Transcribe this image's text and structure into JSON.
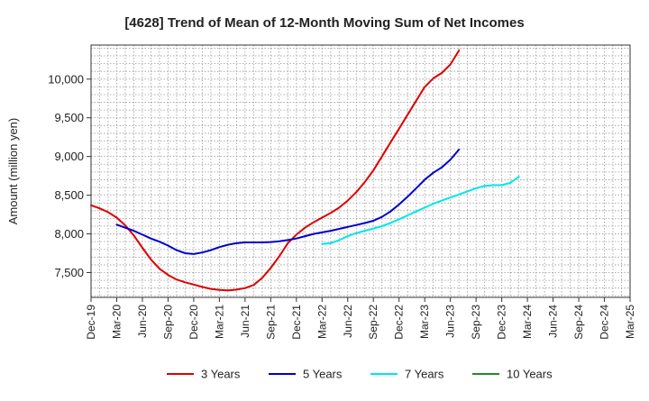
{
  "chart_data": {
    "type": "line",
    "title": "[4628]  Trend of Mean of 12-Month Moving Sum of Net Incomes",
    "xlabel": "",
    "ylabel": "Amount (million yen)",
    "x_tick_labels": [
      "Dec-19",
      "Mar-20",
      "Jun-20",
      "Sep-20",
      "Dec-20",
      "Mar-21",
      "Jun-21",
      "Sep-21",
      "Dec-21",
      "Mar-22",
      "Jun-22",
      "Sep-22",
      "Dec-22",
      "Mar-23",
      "Jun-23",
      "Sep-23",
      "Dec-23",
      "Mar-24",
      "Jun-24",
      "Sep-24",
      "Dec-24",
      "Mar-25"
    ],
    "y_ticks": [
      7500,
      8000,
      8500,
      9000,
      9500,
      10000
    ],
    "y_tick_labels": [
      "7,500",
      "8,000",
      "8,500",
      "9,000",
      "9,500",
      "10,000"
    ],
    "ylim": [
      7180,
      10440
    ],
    "grid": true,
    "legend_position": "bottom",
    "series": [
      {
        "name": "3 Years",
        "color": "#dd0000",
        "start_label": "Dec-19",
        "values": [
          8370,
          8330,
          8280,
          8210,
          8110,
          7980,
          7820,
          7670,
          7550,
          7470,
          7410,
          7375,
          7345,
          7315,
          7290,
          7275,
          7270,
          7280,
          7300,
          7340,
          7430,
          7560,
          7710,
          7880,
          7990,
          8080,
          8150,
          8210,
          8270,
          8340,
          8430,
          8540,
          8670,
          8820,
          9000,
          9180,
          9360,
          9540,
          9720,
          9900,
          10010,
          10080,
          10190,
          10370
        ]
      },
      {
        "name": "5 Years",
        "color": "#0000cc",
        "start_label": "Mar-20",
        "values": [
          8120,
          8080,
          8040,
          7990,
          7940,
          7900,
          7850,
          7790,
          7750,
          7740,
          7760,
          7790,
          7830,
          7860,
          7880,
          7890,
          7890,
          7890,
          7895,
          7905,
          7920,
          7940,
          7970,
          8000,
          8020,
          8040,
          8065,
          8090,
          8115,
          8140,
          8170,
          8220,
          8290,
          8380,
          8480,
          8590,
          8700,
          8790,
          8860,
          8960,
          9090
        ]
      },
      {
        "name": "7 Years",
        "color": "#00e5ee",
        "start_label": "Mar-22",
        "values": [
          7870,
          7880,
          7920,
          7970,
          8010,
          8040,
          8070,
          8100,
          8140,
          8190,
          8240,
          8290,
          8340,
          8390,
          8430,
          8470,
          8510,
          8550,
          8590,
          8620,
          8630,
          8630,
          8660,
          8740
        ]
      },
      {
        "name": "10 Years",
        "color": "#228b22",
        "start_label": "",
        "values": []
      }
    ]
  }
}
